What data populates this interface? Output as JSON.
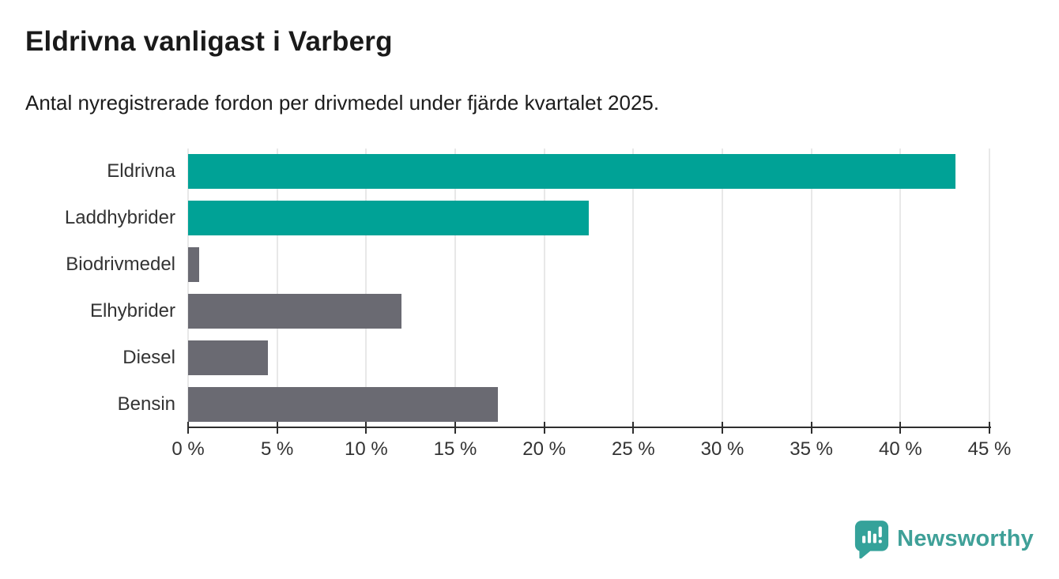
{
  "header": {
    "title": "Eldrivna vanligast i Varberg",
    "subtitle": "Antal nyregistrerade fordon per drivmedel under fjärde kvartalet 2025."
  },
  "chart_data": {
    "type": "bar",
    "orientation": "horizontal",
    "title": "Eldrivna vanligast i Varberg",
    "subtitle": "Antal nyregistrerade fordon per drivmedel under fjärde kvartalet 2025.",
    "categories": [
      "Eldrivna",
      "Laddhybrider",
      "Biodrivmedel",
      "Elhybrider",
      "Diesel",
      "Bensin"
    ],
    "values": [
      43.1,
      22.5,
      0.6,
      12.0,
      4.5,
      17.4
    ],
    "colors": [
      "#00a296",
      "#00a296",
      "#6a6a72",
      "#6a6a72",
      "#6a6a72",
      "#6a6a72"
    ],
    "highlight_color": "#00a296",
    "default_color": "#6a6a72",
    "xlim": [
      0,
      45
    ],
    "xticks": [
      0,
      5,
      10,
      15,
      20,
      25,
      30,
      35,
      40,
      45
    ],
    "xtick_labels": [
      "0 %",
      "5 %",
      "10 %",
      "15 %",
      "20 %",
      "25 %",
      "30 %",
      "35 %",
      "40 %",
      "45 %"
    ],
    "xlabel": "",
    "ylabel": "",
    "grid": "vertical",
    "legend": "none"
  },
  "footer": {
    "brand": "Newsworthy",
    "brand_color": "#3fa098",
    "logo_icon": "newsworthy-chart-bubble-icon"
  }
}
